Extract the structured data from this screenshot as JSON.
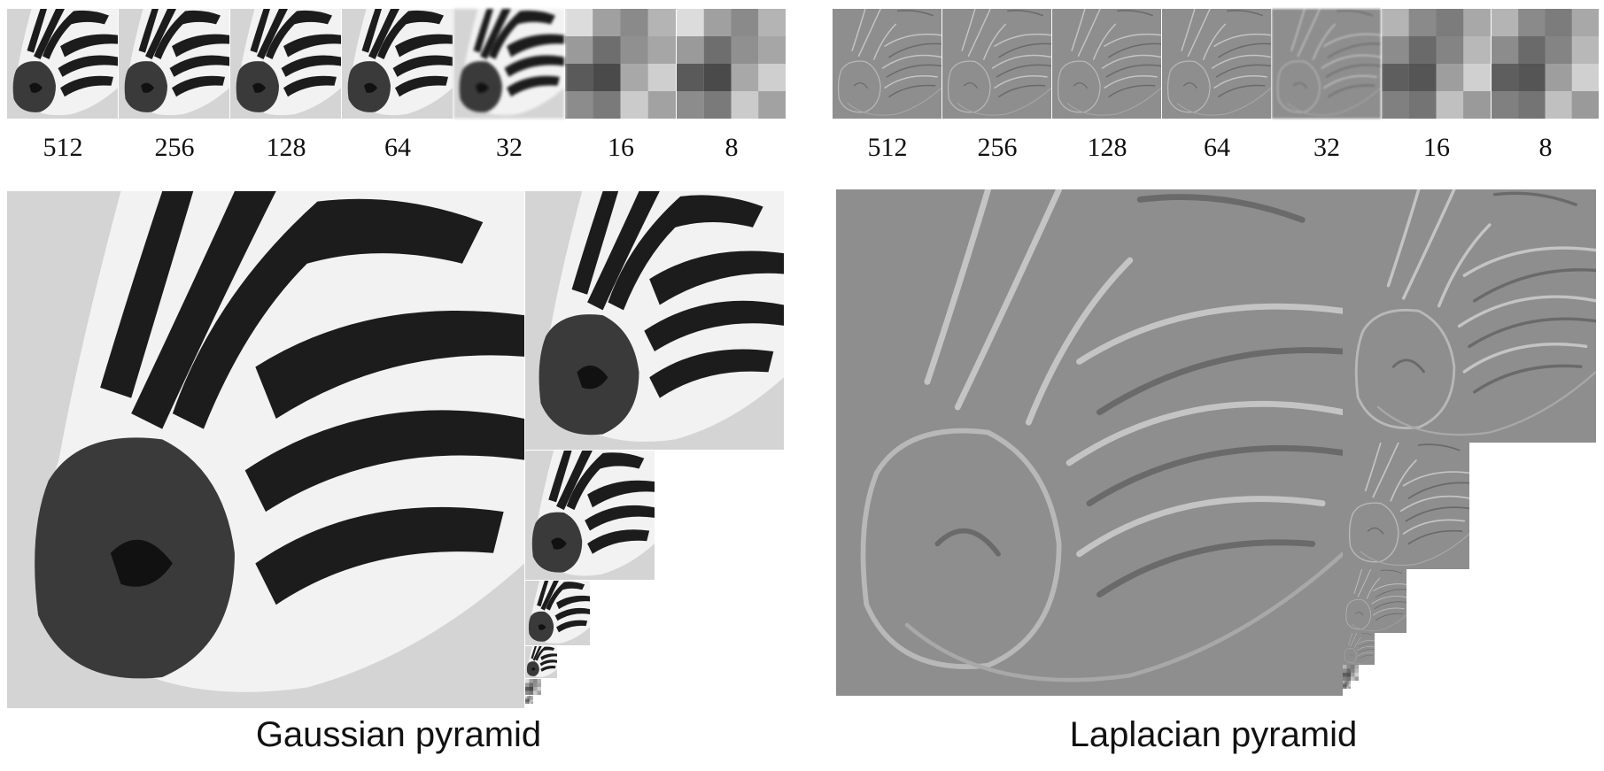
{
  "gaussian": {
    "caption": "Gaussian pyramid",
    "sizes": [
      "512",
      "256",
      "128",
      "64",
      "32",
      "16",
      "8"
    ]
  },
  "laplacian": {
    "caption": "Laplacian pyramid",
    "sizes": [
      "512",
      "256",
      "128",
      "64",
      "32",
      "16",
      "8"
    ]
  },
  "colors": {
    "gaussian_bg": "#d6d6d6",
    "gaussian_stripe": "#1a1a1a",
    "laplacian_bg": "#8f8f8f",
    "laplacian_edge_light": "#c8c8c8",
    "laplacian_edge_dark": "#6a6a6a"
  }
}
